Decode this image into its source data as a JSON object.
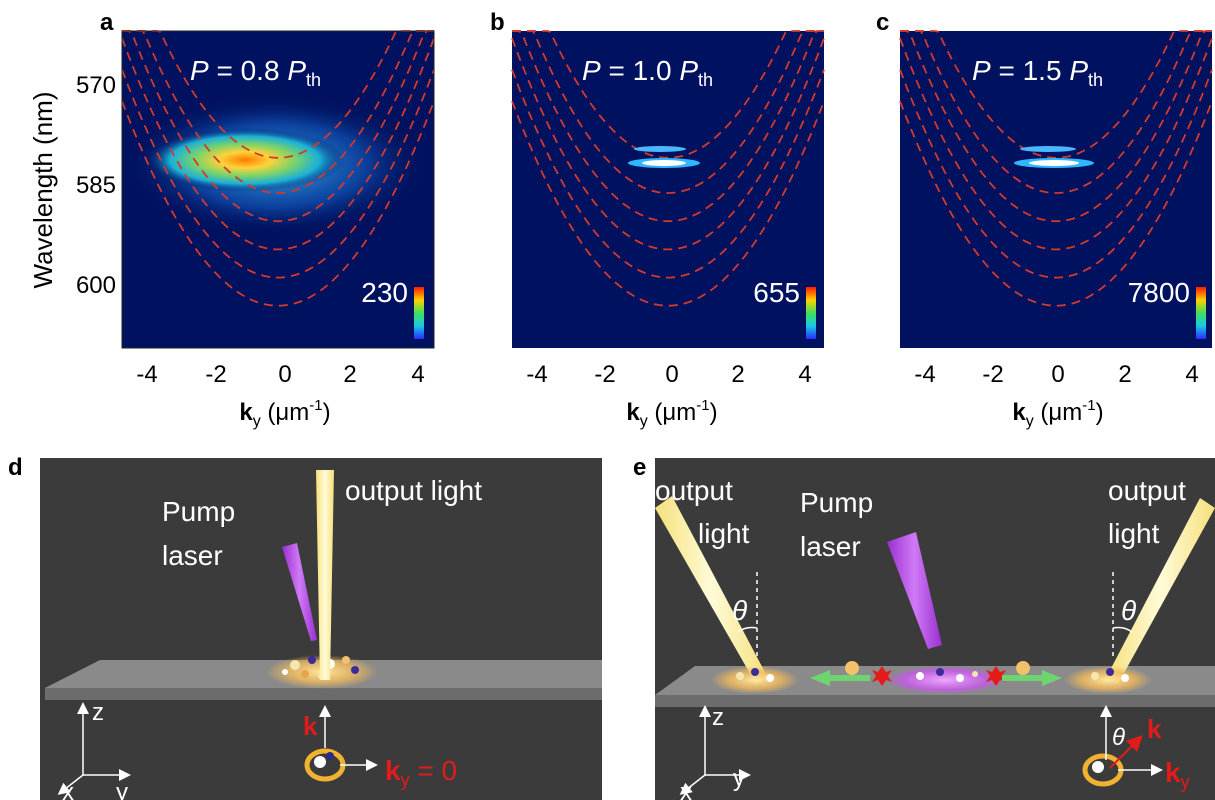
{
  "panels": {
    "a": {
      "letter": "a",
      "power_prefix": "P",
      "power_value": " = 0.8 ",
      "power_unit": "P",
      "power_sub": "th",
      "colorbar_max": "230"
    },
    "b": {
      "letter": "b",
      "power_prefix": "P",
      "power_value": " = 1.0 ",
      "power_unit": "P",
      "power_sub": "th",
      "colorbar_max": "655"
    },
    "c": {
      "letter": "c",
      "power_prefix": "P",
      "power_value": " = 1.5 ",
      "power_unit": "P",
      "power_sub": "th",
      "colorbar_max": "7800"
    }
  },
  "axes": {
    "ylabel": "Wavelength (nm)",
    "xlabel_main": "k",
    "xlabel_sub": "y",
    "xlabel_units": " (μm",
    "xlabel_exp": "-1",
    "xlabel_close": ")",
    "x_ticks": [
      "-4",
      "-2",
      "0",
      "2",
      "4"
    ],
    "y_ticks": [
      "570",
      "585",
      "600"
    ]
  },
  "chart_data": [
    {
      "type": "heatmap",
      "title": "P = 0.8 Pth",
      "xlabel": "ky (μm-1)",
      "ylabel": "Wavelength (nm)",
      "xlim": [
        -4.5,
        4.5
      ],
      "ylim": [
        608,
        563
      ],
      "x_ticks": [
        -4,
        -2,
        0,
        2,
        4
      ],
      "y_ticks": [
        570,
        585,
        600
      ],
      "colorbar_max": 230,
      "dispersion_mode_minima_nm": [
        581,
        586,
        590,
        594,
        598,
        602
      ],
      "emission_peak": {
        "ky": -1,
        "wavelength_nm": 581
      }
    },
    {
      "type": "heatmap",
      "title": "P = 1.0 Pth",
      "xlabel": "ky (μm-1)",
      "xlim": [
        -4.5,
        4.5
      ],
      "ylim": [
        608,
        563
      ],
      "x_ticks": [
        -4,
        -2,
        0,
        2,
        4
      ],
      "colorbar_max": 655,
      "dispersion_mode_minima_nm": [
        581,
        586,
        590,
        594,
        598,
        602
      ],
      "lasing_peak": {
        "ky": 0,
        "wavelength_nm": 581
      }
    },
    {
      "type": "heatmap",
      "title": "P = 1.5 Pth",
      "xlabel": "ky (μm-1)",
      "xlim": [
        -4.5,
        4.5
      ],
      "ylim": [
        608,
        563
      ],
      "x_ticks": [
        -4,
        -2,
        0,
        2,
        4
      ],
      "colorbar_max": 7800,
      "dispersion_mode_minima_nm": [
        581,
        586,
        590,
        594,
        598,
        602
      ],
      "lasing_peak": {
        "ky": 0,
        "wavelength_nm": 581
      }
    }
  ],
  "schematic_d": {
    "letter": "d",
    "output_label": "output light",
    "pump_line1": "Pump",
    "pump_line2": "laser",
    "k_label": "k",
    "ky_main": "k",
    "ky_sub": "y",
    "ky_value": " = 0",
    "axis_z": "z",
    "axis_x": "x",
    "axis_y": "y"
  },
  "schematic_e": {
    "letter": "e",
    "left_output_line1": "output",
    "left_output_line2": "light",
    "right_output_line1": "output",
    "right_output_line2": "light",
    "pump_line1": "Pump",
    "pump_line2": "laser",
    "theta": "θ",
    "k_label": "k",
    "ky_main": "k",
    "ky_sub": "y",
    "axis_z": "z",
    "axis_x": "x",
    "axis_y": "y"
  },
  "colors": {
    "heatmap_background": "#00125f",
    "mode_line": "#d23a2a",
    "schematic_background": "#3b3b3b",
    "substrate": "#8a8a8a",
    "output_beam": "#fff3a8",
    "pump_beam": "#b44ae0",
    "arrow_green": "#6fd36f",
    "k_red": "#e31b1b"
  }
}
